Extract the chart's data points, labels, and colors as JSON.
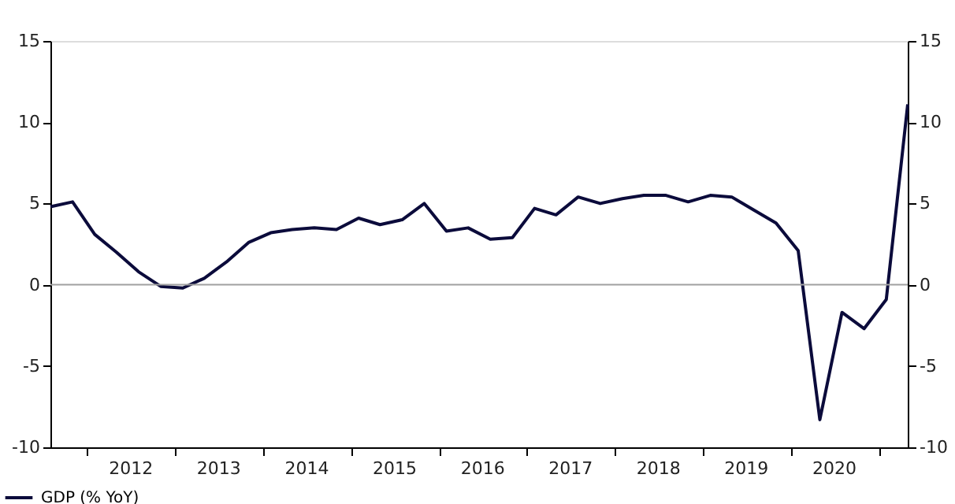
{
  "chart_data": {
    "type": "line",
    "xlabel": null,
    "x": [
      "2011-08",
      "2011-11",
      "2012-02",
      "2012-05",
      "2012-08",
      "2012-11",
      "2013-02",
      "2013-05",
      "2013-08",
      "2013-11",
      "2014-02",
      "2014-05",
      "2014-08",
      "2014-11",
      "2015-02",
      "2015-05",
      "2015-08",
      "2015-11",
      "2016-02",
      "2016-05",
      "2016-08",
      "2016-11",
      "2017-02",
      "2017-05",
      "2017-08",
      "2017-11",
      "2018-02",
      "2018-05",
      "2018-08",
      "2018-11",
      "2019-02",
      "2019-05",
      "2019-08",
      "2019-11",
      "2020-02",
      "2020-05",
      "2020-08",
      "2020-11",
      "2021-02",
      "2021-05"
    ],
    "series": [
      {
        "name": "GDP (% YoY)",
        "color": "#0b0b3b",
        "values": [
          4.8,
          5.1,
          3.1,
          2.0,
          0.8,
          -0.1,
          -0.2,
          0.4,
          1.4,
          2.6,
          3.2,
          3.4,
          3.5,
          3.4,
          4.1,
          3.7,
          4.0,
          5.0,
          3.3,
          3.5,
          2.8,
          2.9,
          4.7,
          4.3,
          5.4,
          5.0,
          5.3,
          5.5,
          5.5,
          5.1,
          5.5,
          5.4,
          4.6,
          3.8,
          2.1,
          -8.3,
          -1.7,
          -2.7,
          -0.9,
          11.1
        ]
      }
    ],
    "xlim": [
      "2011-08",
      "2021-05"
    ],
    "xticks": [
      {
        "value": "2012",
        "label": null
      },
      {
        "value": "2012-07",
        "label": "2012"
      },
      {
        "value": "2013",
        "label": null
      },
      {
        "value": "2013-07",
        "label": "2013"
      },
      {
        "value": "2014",
        "label": null
      },
      {
        "value": "2014-07",
        "label": "2014"
      },
      {
        "value": "2015",
        "label": null
      },
      {
        "value": "2015-07",
        "label": "2015"
      },
      {
        "value": "2016",
        "label": null
      },
      {
        "value": "2016-07",
        "label": "2016"
      },
      {
        "value": "2017",
        "label": null
      },
      {
        "value": "2017-07",
        "label": "2017"
      },
      {
        "value": "2018",
        "label": null
      },
      {
        "value": "2018-07",
        "label": "2018"
      },
      {
        "value": "2019",
        "label": null
      },
      {
        "value": "2019-07",
        "label": "2019"
      },
      {
        "value": "2020",
        "label": null
      },
      {
        "value": "2020-07",
        "label": "2020"
      },
      {
        "value": "2021",
        "label": null
      }
    ],
    "ylim": [
      -10,
      15
    ],
    "yticks": [
      -10,
      -5,
      0,
      5,
      10,
      15
    ],
    "y2lim": [
      -10,
      15
    ],
    "y2ticks": [
      -10,
      -5,
      0,
      5,
      10,
      15
    ],
    "ref_lines": [
      {
        "axis": "y",
        "value": 0,
        "color": "#a0a0a0"
      }
    ],
    "grid": false,
    "legend": "bottom left",
    "marker": "none",
    "line_style": "solid"
  }
}
